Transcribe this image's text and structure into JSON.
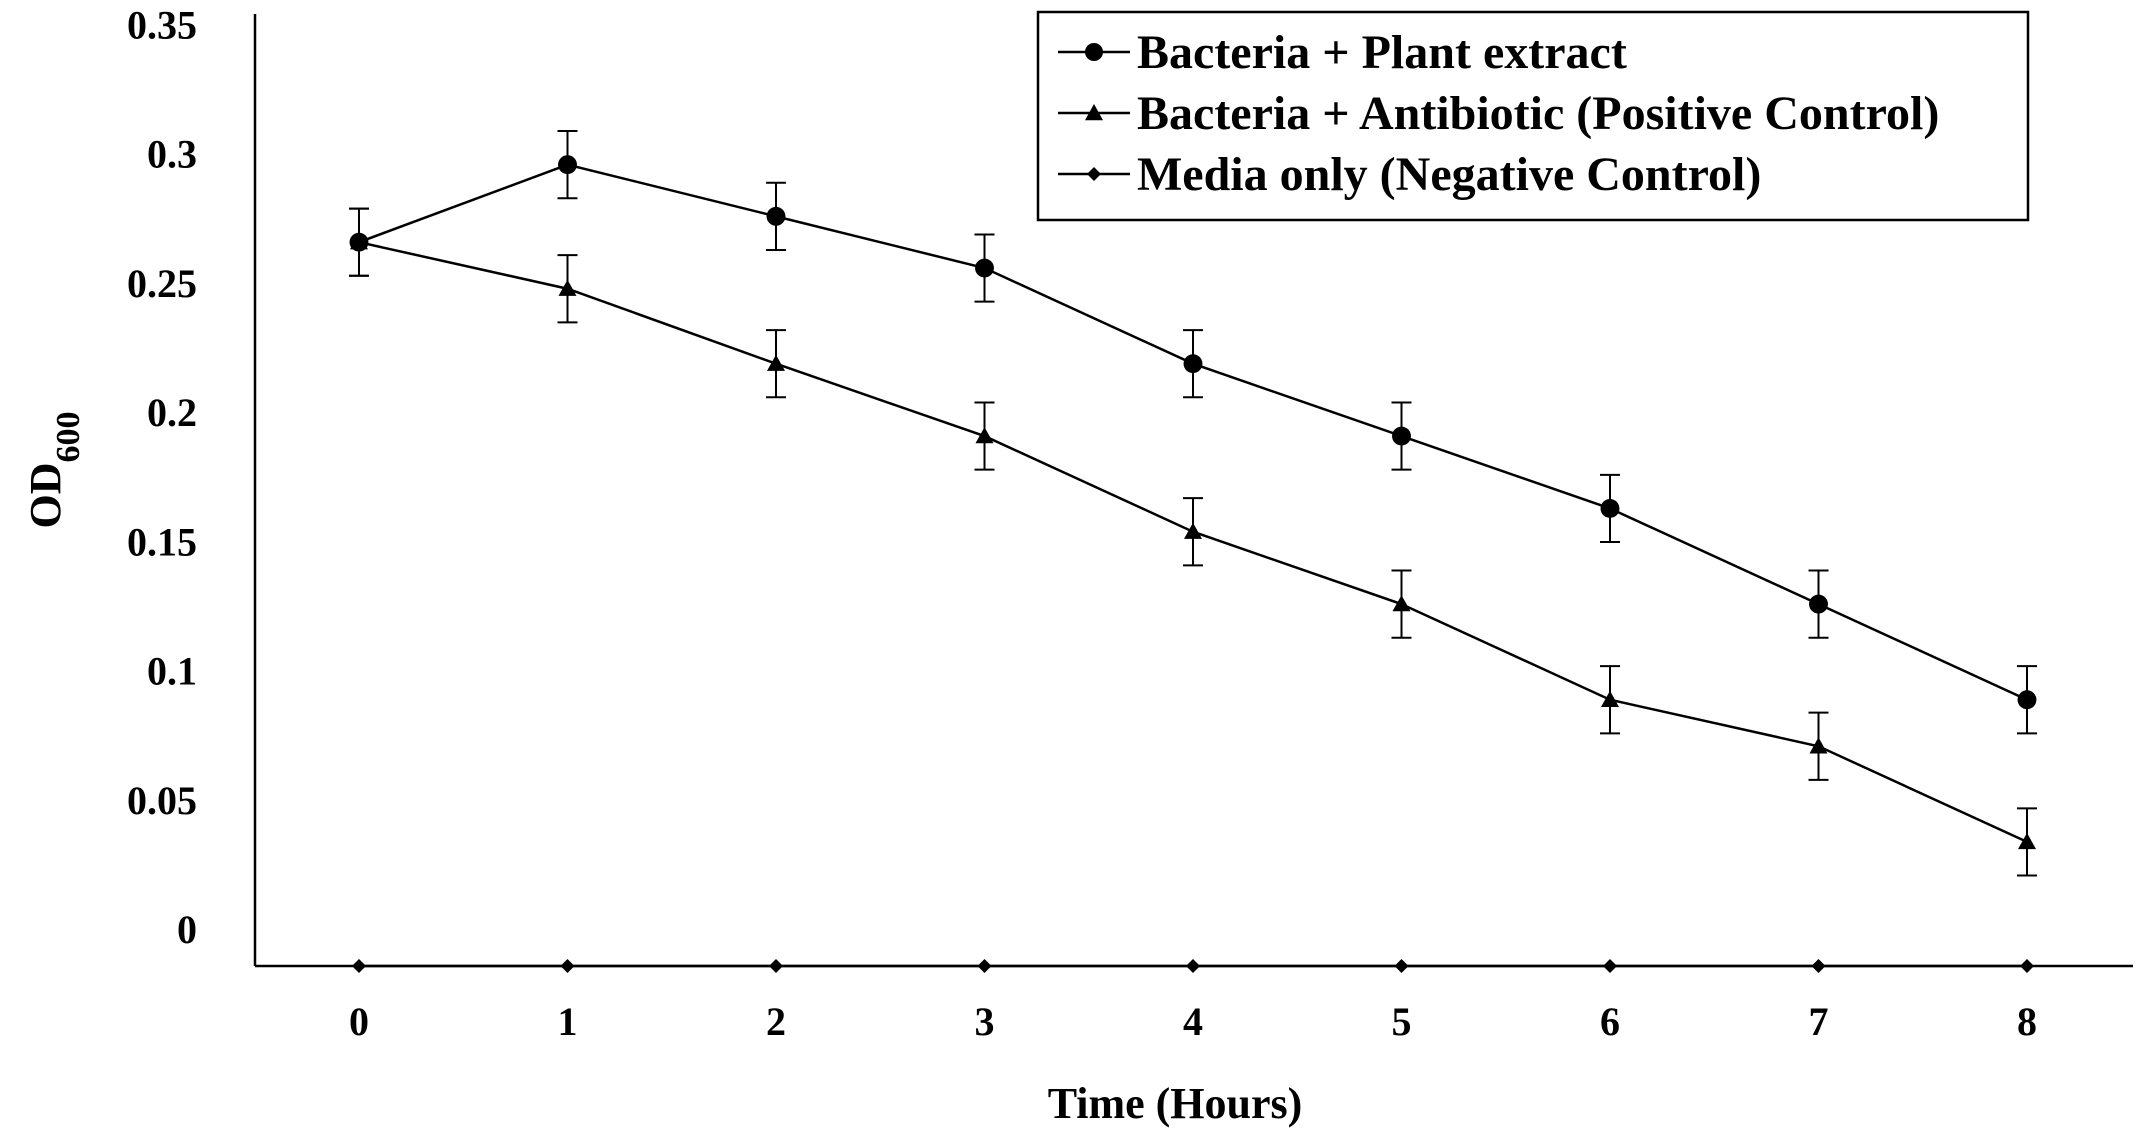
{
  "chart_data": {
    "type": "line",
    "title": "",
    "xlabel": "Time (Hours)",
    "ylabel": {
      "main": "OD",
      "sub": "600"
    },
    "x": [
      0,
      1,
      2,
      3,
      4,
      5,
      6,
      7,
      8
    ],
    "x_tick_labels": [
      "0",
      "1",
      "2",
      "3",
      "4",
      "5",
      "6",
      "7",
      "8"
    ],
    "y_tick_labels": [
      "0",
      "0.05",
      "0.1",
      "0.15",
      "0.2",
      "0.25",
      "0.3",
      "0.35"
    ],
    "y_ticks": [
      0,
      0.05,
      0.1,
      0.15,
      0.2,
      0.25,
      0.3,
      0.35
    ],
    "ylim": [
      0,
      0.35
    ],
    "grid": false,
    "legend_position": "top-right",
    "series": [
      {
        "name": "Bacteria + Plant extract",
        "marker": "circle",
        "values": [
          0.28,
          0.31,
          0.29,
          0.27,
          0.233,
          0.205,
          0.177,
          0.14,
          0.103
        ],
        "error": [
          0.005,
          0.005,
          0.005,
          0.005,
          0.005,
          0.005,
          0.005,
          0.005,
          0.005
        ]
      },
      {
        "name": "Bacteria + Antibiotic (Positive Control)",
        "marker": "triangle",
        "values": [
          0.28,
          0.262,
          0.233,
          0.205,
          0.168,
          0.14,
          0.103,
          0.085,
          0.048
        ],
        "error": [
          0.005,
          0.005,
          0.005,
          0.005,
          0.005,
          0.005,
          0.005,
          0.005,
          0.005
        ]
      },
      {
        "name": "Media only (Negative Control)",
        "marker": "diamond",
        "values": [
          0,
          0,
          0,
          0,
          0,
          0,
          0,
          0,
          0
        ],
        "error": [
          0,
          0,
          0,
          0,
          0,
          0,
          0,
          0,
          0
        ]
      }
    ]
  }
}
